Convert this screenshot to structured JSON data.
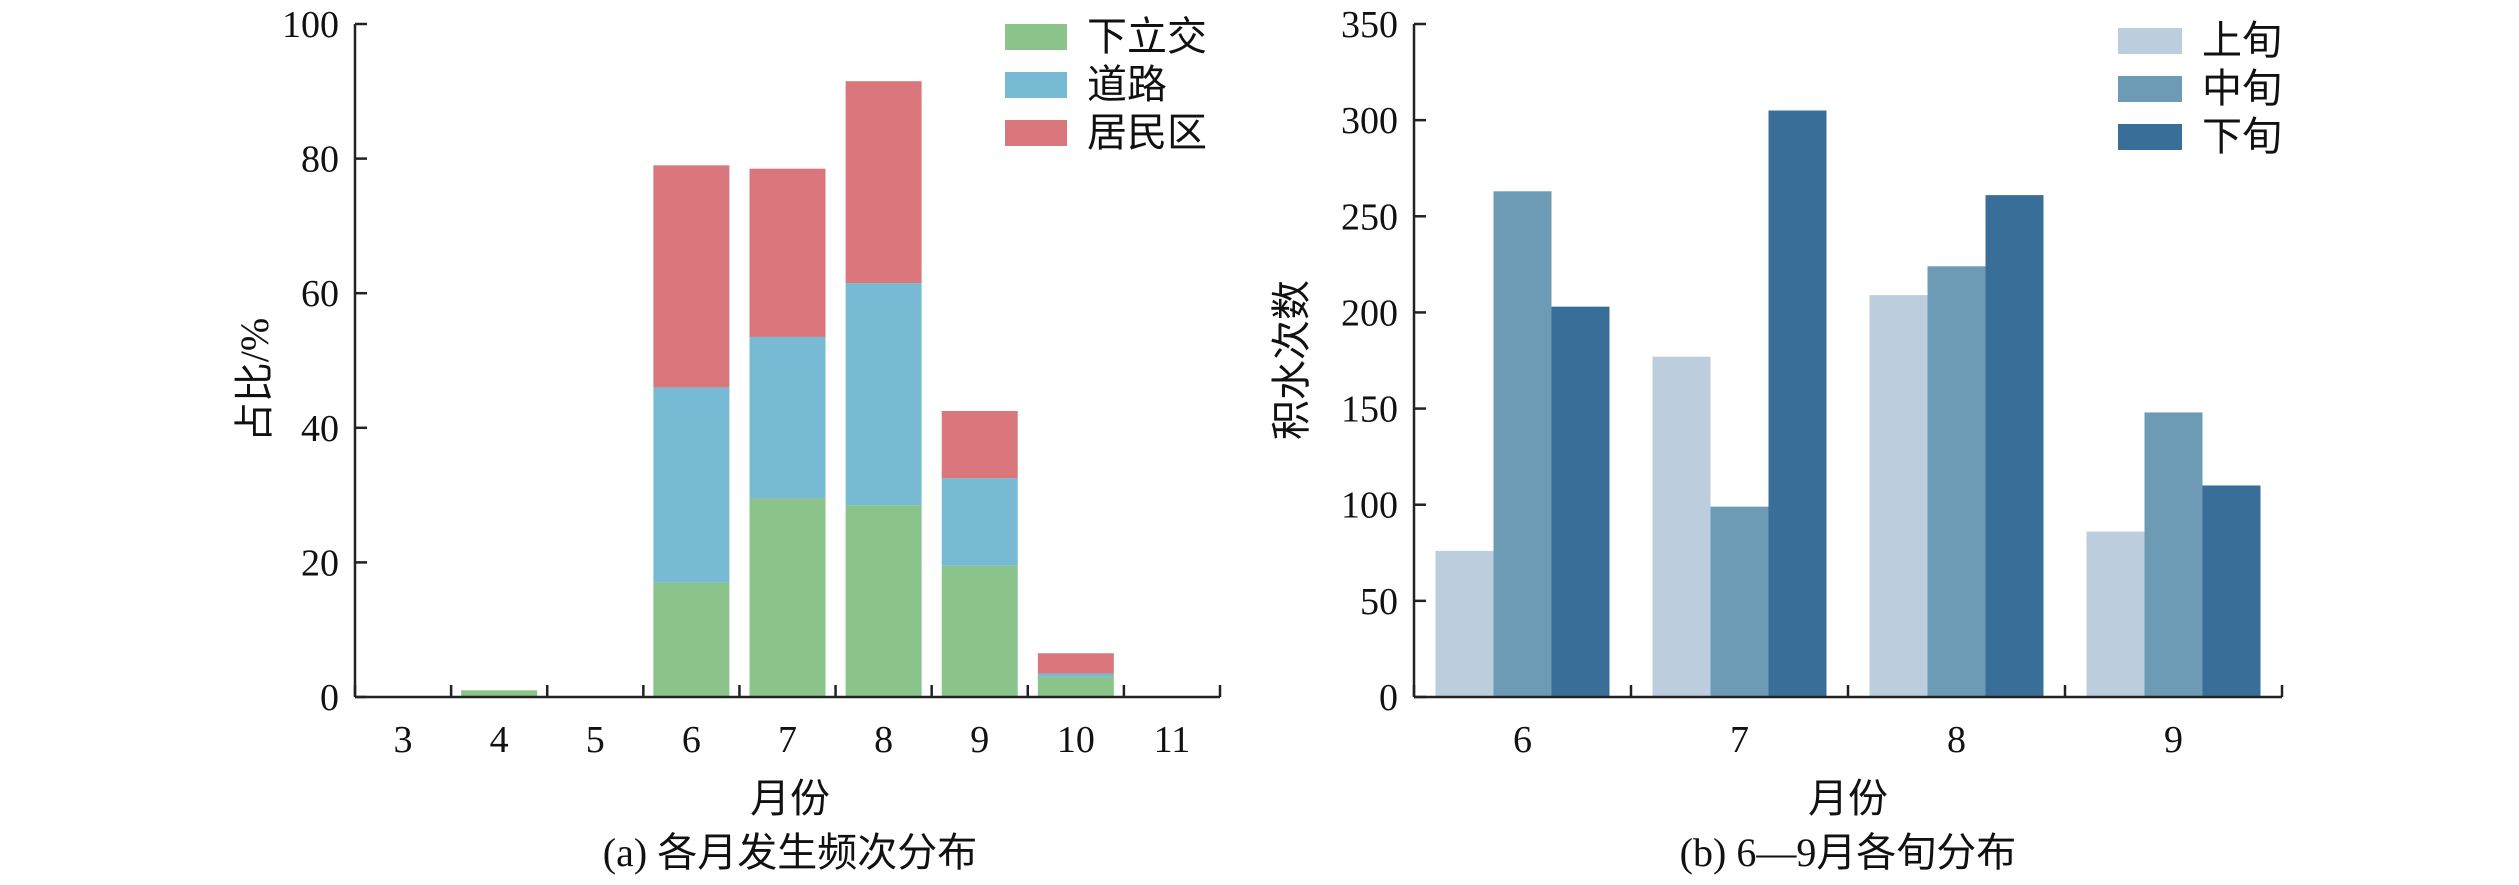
{
  "chart_data": [
    {
      "type": "bar",
      "stacked": true,
      "caption": "(a) 各月发生频次分布",
      "xlabel": "月份",
      "ylabel": "占比/%",
      "ylim": [
        0,
        100
      ],
      "yticks": [
        "0",
        "20",
        "40",
        "60",
        "80",
        "100"
      ],
      "categories": [
        "3",
        "4",
        "5",
        "6",
        "7",
        "8",
        "9",
        "10",
        "11"
      ],
      "legend_position": "top-right",
      "series": [
        {
          "name": "下立交",
          "color": "#8bc48a",
          "values": [
            0,
            1,
            0,
            17,
            29.5,
            28.5,
            19.5,
            3,
            0
          ]
        },
        {
          "name": "道路",
          "color": "#77bad4",
          "values": [
            0,
            0,
            0,
            29,
            24,
            33,
            13,
            0.5,
            0
          ]
        },
        {
          "name": "居民区",
          "color": "#da777c",
          "values": [
            0,
            0,
            0,
            33,
            25,
            30,
            10,
            3,
            0
          ]
        }
      ]
    },
    {
      "type": "bar",
      "stacked": false,
      "caption": "(b) 6—9月各旬分布",
      "xlabel": "月份",
      "ylabel": "积水次数",
      "ylim": [
        0,
        350
      ],
      "yticks": [
        "0",
        "50",
        "100",
        "150",
        "200",
        "250",
        "300",
        "350"
      ],
      "categories": [
        "6",
        "7",
        "8",
        "9"
      ],
      "legend_position": "top-right",
      "series": [
        {
          "name": "上旬",
          "color": "#bccddd",
          "values": [
            76,
            177,
            209,
            86
          ]
        },
        {
          "name": "中旬",
          "color": "#6d9bb5",
          "values": [
            263,
            99,
            224,
            148
          ]
        },
        {
          "name": "下旬",
          "color": "#396e98",
          "values": [
            203,
            305,
            261,
            110
          ]
        }
      ]
    }
  ]
}
